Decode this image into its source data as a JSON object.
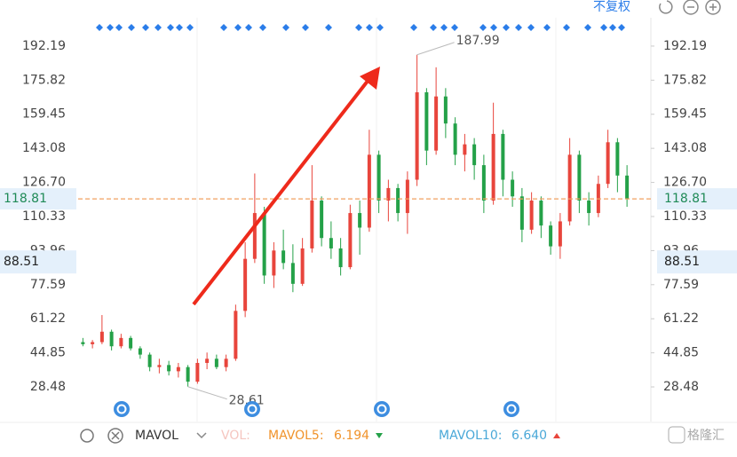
{
  "toolbar": {
    "adjust": "不复权"
  },
  "chart_data": {
    "type": "candlestick",
    "ylim": [
      14.0,
      205.8
    ],
    "yticks": [
      28.48,
      44.85,
      61.22,
      77.59,
      93.96,
      {
        "value": 110.33,
        "label": "110.33"
      },
      {
        "value": 126.7,
        "label": "126.70"
      },
      143.08,
      159.45,
      175.82,
      192.19
    ],
    "open": [
      50,
      49,
      50,
      55,
      48,
      52,
      47,
      44,
      38,
      39,
      36,
      38,
      31,
      40,
      42,
      38,
      42,
      65,
      90,
      112,
      82,
      94,
      88,
      78,
      95,
      118,
      100,
      95,
      86,
      112,
      105,
      140,
      118,
      124,
      112,
      128,
      170,
      142,
      168,
      155,
      140,
      145,
      135,
      118,
      150,
      128,
      120,
      104,
      118,
      106,
      96,
      108,
      140,
      118,
      112,
      126,
      146,
      130
    ],
    "high": [
      52,
      51,
      63,
      56,
      54,
      53,
      48,
      45,
      42,
      41,
      40,
      39,
      42,
      45,
      44,
      44,
      68,
      98,
      131,
      115,
      98,
      104,
      97,
      100,
      135,
      120,
      108,
      100,
      116,
      118,
      152,
      142,
      128,
      126,
      132,
      187.99,
      172,
      182,
      172,
      158,
      150,
      148,
      140,
      165,
      152,
      132,
      124,
      122,
      120,
      108,
      112,
      148,
      142,
      122,
      130,
      152,
      148,
      135
    ],
    "low": [
      48,
      47,
      49,
      46,
      47,
      46,
      42,
      36,
      35,
      34,
      33,
      28.61,
      30,
      37,
      37,
      36,
      41,
      62,
      88,
      78,
      76,
      85,
      74,
      77,
      93,
      96,
      90,
      82,
      85,
      92,
      103,
      112,
      108,
      108,
      102,
      125,
      135,
      140,
      148,
      135,
      132,
      128,
      112,
      116,
      120,
      115,
      98,
      102,
      100,
      92,
      90,
      106,
      112,
      106,
      110,
      124,
      122,
      115
    ],
    "close": [
      49,
      50,
      55,
      48,
      52,
      47,
      44,
      38,
      39,
      36,
      38,
      31,
      40,
      42,
      38,
      42,
      65,
      90,
      112,
      82,
      94,
      88,
      78,
      95,
      118,
      100,
      95,
      86,
      112,
      105,
      140,
      118,
      124,
      112,
      128,
      170,
      142,
      168,
      155,
      140,
      145,
      135,
      118,
      150,
      128,
      120,
      104,
      118,
      106,
      96,
      108,
      140,
      118,
      112,
      126,
      146,
      130,
      118.81
    ],
    "up_color": "#e8453c",
    "down_color": "#24a148",
    "last_price": 118.81,
    "crosshair_price": 88.51,
    "high_label": 187.99,
    "low_label": 28.61,
    "indicator": "MAVOL",
    "vol_label": "VOL:",
    "mavol5": {
      "label": "MAVOL5:",
      "value": 6.194
    },
    "mavol10": {
      "label": "MAVOL10:",
      "value": 6.64,
      "value_label": "6.640"
    }
  },
  "watermark": "格隆汇"
}
